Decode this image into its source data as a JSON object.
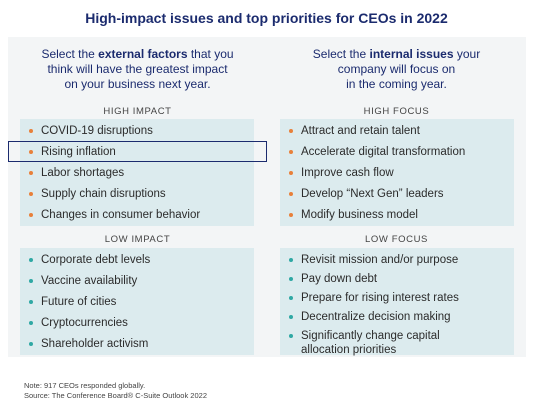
{
  "title": "High-impact issues and top priorities for CEOs in 2022",
  "left": {
    "heading": {
      "line1_pre": "Select the ",
      "line1_bold": "external factors",
      "line1_post": " that you",
      "line2": "think will have the greatest impact",
      "line3": "on your business next year."
    },
    "high_label": "HIGH IMPACT",
    "high_items": [
      "COVID-19 disruptions",
      "Rising inflation",
      "Labor shortages",
      "Supply chain disruptions",
      "Changes in consumer behavior"
    ],
    "low_label": "LOW IMPACT",
    "low_items": [
      "Corporate debt levels",
      "Vaccine availability",
      "Future of cities",
      "Cryptocurrencies",
      "Shareholder activism"
    ]
  },
  "right": {
    "heading": {
      "line1_pre": "Select the ",
      "line1_bold": "internal issues",
      "line1_post": " your",
      "line2": "company will focus on",
      "line3": "in the coming year."
    },
    "high_label": "HIGH FOCUS",
    "high_items": [
      "Attract and retain talent",
      "Accelerate digital transformation",
      "Improve cash flow",
      "Develop “Next Gen” leaders",
      "Modify business model"
    ],
    "low_label": "LOW FOCUS",
    "low_items": [
      "Revisit mission and/or purpose",
      "Pay down debt",
      "Prepare for rising interest rates",
      "Decentralize decision making",
      "Significantly change capital",
      "allocation priorities"
    ]
  },
  "note": {
    "line1": "Note: 917 CEOs responded globally.",
    "line2": "Source: The Conference Board® C-Suite Outlook 2022"
  },
  "colors": {
    "title": "#1b2b6e",
    "panel": "#f3f5f6",
    "box": "#dcebee",
    "high_bullet": "#e8803a",
    "low_bullet": "#2fa8a4"
  }
}
